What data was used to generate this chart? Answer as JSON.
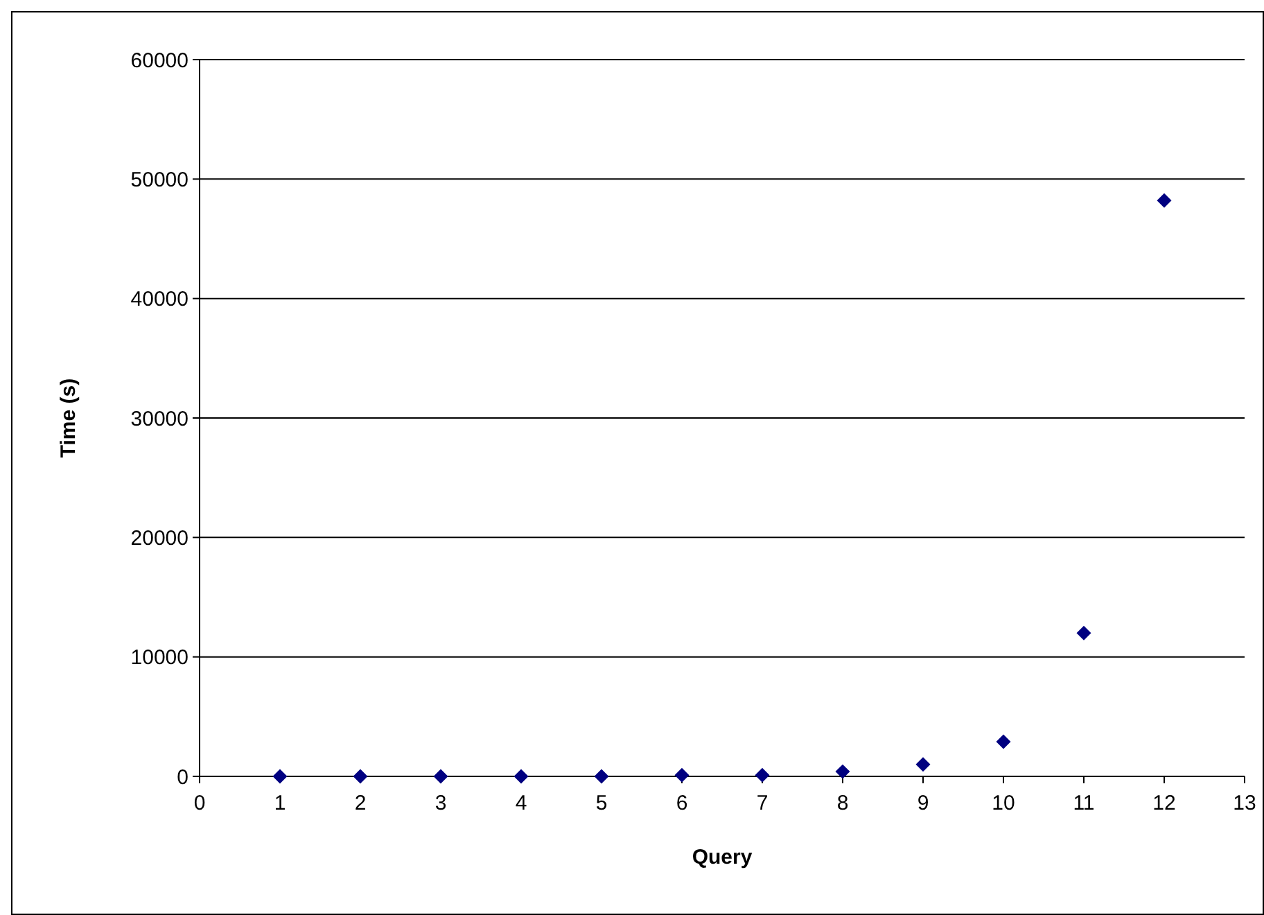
{
  "chart_data": {
    "type": "scatter",
    "xlabel": "Query",
    "ylabel": "Time (s)",
    "x": [
      1,
      2,
      3,
      4,
      5,
      6,
      7,
      8,
      9,
      10,
      11,
      12
    ],
    "series": [
      {
        "color": "#000080",
        "values": [
          0,
          0,
          0,
          0,
          0,
          100,
          100,
          400,
          1000,
          2900,
          12000,
          48200
        ]
      }
    ],
    "xlim": [
      0,
      13
    ],
    "xticks": [
      0,
      1,
      2,
      3,
      4,
      5,
      6,
      7,
      8,
      9,
      10,
      11,
      12,
      13
    ],
    "ylim": [
      0,
      60000
    ],
    "yticks": [
      0,
      10000,
      20000,
      30000,
      40000,
      50000,
      60000
    ],
    "grid": "y",
    "marker": "diamond"
  }
}
